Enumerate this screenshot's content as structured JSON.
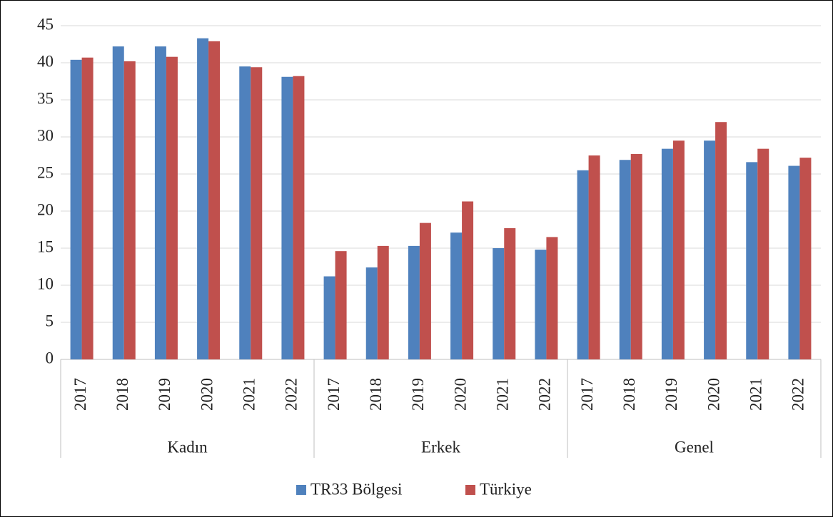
{
  "chart_data": {
    "type": "bar",
    "categories": [
      "2017",
      "2018",
      "2019",
      "2020",
      "2021",
      "2022",
      "2017",
      "2018",
      "2019",
      "2020",
      "2021",
      "2022",
      "2017",
      "2018",
      "2019",
      "2020",
      "2021",
      "2022"
    ],
    "category_groups": [
      "Kadın",
      "Erkek",
      "Genel"
    ],
    "series": [
      {
        "name": "TR33 Bölgesi",
        "color": "#4f81bd",
        "values": [
          40.4,
          42.2,
          42.2,
          43.3,
          39.5,
          38.1,
          11.2,
          12.4,
          15.3,
          17.1,
          15.0,
          14.8,
          25.5,
          26.9,
          28.4,
          29.5,
          26.6,
          26.1
        ]
      },
      {
        "name": "Türkiye",
        "color": "#c0504d",
        "values": [
          40.7,
          40.2,
          40.8,
          42.9,
          39.4,
          38.2,
          14.6,
          15.3,
          18.4,
          21.3,
          17.7,
          16.5,
          27.5,
          27.7,
          29.5,
          32.0,
          28.4,
          27.2
        ]
      }
    ],
    "ylim": [
      0,
      45
    ],
    "yticks": [
      0,
      5,
      10,
      15,
      20,
      25,
      30,
      35,
      40,
      45
    ],
    "grid": true,
    "legend": "bottom"
  }
}
